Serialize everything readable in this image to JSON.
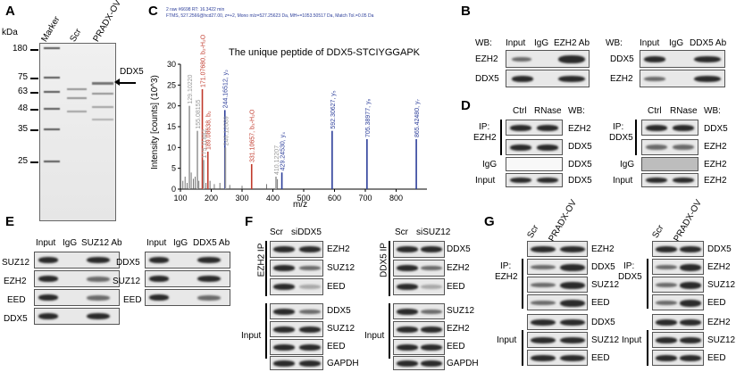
{
  "panels": {
    "A": {
      "letter": "A",
      "kda_label": "kDa",
      "lanes": [
        "Marker",
        "Scr",
        "PRADX-OV"
      ],
      "markers": [
        "180",
        "75",
        "63",
        "48",
        "35",
        "25"
      ],
      "arrow_label": "DDX5"
    },
    "B": {
      "letter": "B",
      "left": {
        "wb": "WB:",
        "cols": [
          "Input",
          "IgG",
          "EZH2 Ab"
        ],
        "rows": [
          "EZH2",
          "DDX5"
        ]
      },
      "right": {
        "wb": "WB:",
        "cols": [
          "Input",
          "IgG",
          "DDX5 Ab"
        ],
        "rows": [
          "DDX5",
          "EZH2"
        ]
      }
    },
    "C": {
      "letter": "C",
      "header1": "2 raw #6698 RT: 16.3422 min",
      "header2": "FTMS, 527.2566@hcd27.00, z=+2, Mono m/z=527.25623 Da, MH+=1053.50517 Da, Match Tol.=0.05 Da",
      "title": "The unique peptide of DDX5-STCIYGGAPK"
    },
    "D": {
      "letter": "D",
      "left": {
        "cols": [
          "Ctrl",
          "RNase"
        ],
        "wb": "WB:",
        "ip": "IP:",
        "ip_target": "EZH2",
        "rows": [
          "EZH2",
          "DDX5",
          "DDX5",
          "DDX5"
        ],
        "igg": "IgG",
        "input": "Input"
      },
      "right": {
        "cols": [
          "Ctrl",
          "RNase"
        ],
        "wb": "WB:",
        "ip": "IP:",
        "ip_target": "DDX5",
        "rows": [
          "DDX5",
          "EZH2",
          "EZH2",
          "EZH2"
        ],
        "igg": "IgG",
        "input": "Input"
      }
    },
    "E": {
      "letter": "E",
      "left": {
        "cols": [
          "Input",
          "IgG",
          "SUZ12 Ab"
        ],
        "rows": [
          "SUZ12",
          "EZH2",
          "EED",
          "DDX5"
        ]
      },
      "right": {
        "cols": [
          "Input",
          "IgG",
          "DDX5 Ab"
        ],
        "rows": [
          "DDX5",
          "SUZ12",
          "EED"
        ]
      }
    },
    "F": {
      "letter": "F",
      "left": {
        "cols": [
          "Scr",
          "siDDX5"
        ],
        "ip": "EZH2 IP",
        "ip_rows": [
          "EZH2",
          "SUZ12",
          "EED"
        ],
        "input": "Input",
        "input_rows": [
          "DDX5",
          "SUZ12",
          "EED",
          "GAPDH"
        ]
      },
      "right": {
        "cols": [
          "Scr",
          "siSUZ12"
        ],
        "ip": "DDX5 IP",
        "ip_rows": [
          "DDX5",
          "EZH2",
          "EED"
        ],
        "input": "Input",
        "input_rows": [
          "SUZ12",
          "EZH2",
          "EED",
          "GAPDH"
        ]
      }
    },
    "G": {
      "letter": "G",
      "left": {
        "cols": [
          "Scr",
          "PRADX-OV"
        ],
        "ip": "IP:",
        "ip_target": "EZH2",
        "ip_rows": [
          "EZH2",
          "DDX5",
          "SUZ12",
          "EED"
        ],
        "input": "Input",
        "input_rows": [
          "DDX5",
          "SUZ12",
          "EED"
        ]
      },
      "right": {
        "cols": [
          "Scr",
          "PRADX-OV"
        ],
        "ip": "IP:",
        "ip_target": "DDX5",
        "ip_rows": [
          "DDX5",
          "EZH2",
          "SUZ12",
          "EED"
        ],
        "input": "Input",
        "input_rows": [
          "EZH2",
          "SUZ12",
          "EED"
        ]
      }
    }
  },
  "chart_data": {
    "type": "bar",
    "title": "The unique peptide of DDX5-STCIYGGAPK",
    "xlabel": "m/z",
    "ylabel": "Intensity [counts] (10^3)",
    "xlim": [
      100,
      900
    ],
    "ylim": [
      0,
      30
    ],
    "xticks": [
      "100",
      "200",
      "300",
      "400",
      "500",
      "600",
      "700",
      "800"
    ],
    "yticks": [
      "0",
      "5",
      "10",
      "15",
      "20",
      "25",
      "30"
    ],
    "peaks": [
      {
        "mz": 129.1022,
        "intensity": 20,
        "label": "129.10220",
        "color": "#999999"
      },
      {
        "mz": 155.0815,
        "intensity": 14,
        "label": "155.08155",
        "color": "#999999"
      },
      {
        "mz": 171.0768,
        "intensity": 24,
        "label": "171.07680, b₂-H₂O",
        "color": "#c0392b"
      },
      {
        "mz": 175.1188,
        "intensity": 7,
        "label": "175.11882",
        "color": "#999999"
      },
      {
        "mz": 189.0864,
        "intensity": 9,
        "label": "189.08638, b₂",
        "color": "#c0392b"
      },
      {
        "mz": 244.1651,
        "intensity": 19,
        "label": "244.16512, y₂",
        "color": "#2c3e9a"
      },
      {
        "mz": 246.1269,
        "intensity": 10,
        "label": "246.12689",
        "color": "#999999"
      },
      {
        "mz": 331.1066,
        "intensity": 6,
        "label": "331.10657, b₃-H₂O",
        "color": "#c0392b"
      },
      {
        "mz": 410.1221,
        "intensity": 3,
        "label": "410.12207",
        "color": "#999999"
      },
      {
        "mz": 429.2454,
        "intensity": 4,
        "label": "429.24530, y₄",
        "color": "#2c3e9a"
      },
      {
        "mz": 592.3063,
        "intensity": 14,
        "label": "592.30627, y₅",
        "color": "#2c3e9a"
      },
      {
        "mz": 705.3898,
        "intensity": 12,
        "label": "705.38977, y₆",
        "color": "#2c3e9a"
      },
      {
        "mz": 865.4248,
        "intensity": 12,
        "label": "865.42480, y₇",
        "color": "#2c3e9a"
      }
    ]
  }
}
